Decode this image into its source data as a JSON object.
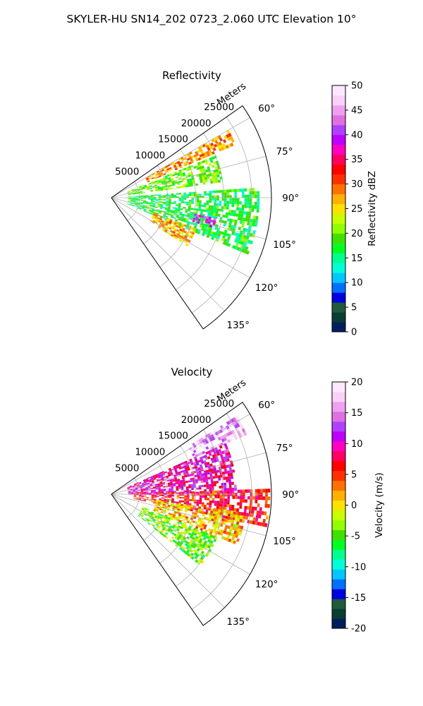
{
  "figure": {
    "suptitle": "SKYLER-HU  SN14_202  0723_2.060 UTC Elevation 10°"
  },
  "chart_data": [
    {
      "type": "heatmap",
      "projection": "polar-sector",
      "title": "Reflectivity",
      "range_label": "Meters",
      "range_ticks": [
        "5000",
        "10000",
        "15000",
        "20000",
        "25000"
      ],
      "range_values": [
        5000,
        10000,
        15000,
        20000,
        25000
      ],
      "range_max": 28500,
      "azimuth_ticks": [
        "60°",
        "75°",
        "90°",
        "105°",
        "120°",
        "135°"
      ],
      "azimuth_values": [
        60,
        75,
        90,
        105,
        120,
        135
      ],
      "azimuth_range": [
        55,
        145
      ],
      "grid": true,
      "colorbar": {
        "label": "Reflectivity dBZ",
        "min": 0,
        "max": 50,
        "tick_labels": [
          "0",
          "5",
          "10",
          "15",
          "20",
          "25",
          "30",
          "35",
          "40",
          "45",
          "50"
        ],
        "tick_values": [
          0,
          5,
          10,
          15,
          20,
          25,
          30,
          35,
          40,
          45,
          50
        ],
        "colors": [
          "#001f5c",
          "#0a3d33",
          "#1f5a3a",
          "#0000e0",
          "#0070ff",
          "#00c8ff",
          "#00ffd8",
          "#00ff90",
          "#00ff20",
          "#40e000",
          "#90ff00",
          "#c8ff00",
          "#ffe000",
          "#ffb000",
          "#ff7000",
          "#ff3000",
          "#ff0000",
          "#ff0060",
          "#ff00c0",
          "#c000ff",
          "#b040ff",
          "#e070e0",
          "#f0a0f0",
          "#f8d0f8",
          "#ffe8ff"
        ]
      },
      "features": [
        {
          "azimuth_range": [
            68,
            82
          ],
          "range": [
            3000,
            20000
          ],
          "value": 20
        },
        {
          "azimuth_range": [
            60,
            66
          ],
          "range": [
            7000,
            24000
          ],
          "value": 28
        },
        {
          "azimuth_range": [
            86,
            112
          ],
          "range": [
            3000,
            26000
          ],
          "value": 17
        },
        {
          "azimuth_range": [
            101,
            106
          ],
          "range": [
            15000,
            19000
          ],
          "value": 40
        },
        {
          "azimuth_range": [
            110,
            122
          ],
          "range": [
            8000,
            16000
          ],
          "value": 27
        }
      ]
    },
    {
      "type": "heatmap",
      "projection": "polar-sector",
      "title": "Velocity",
      "range_label": "Meters",
      "range_ticks": [
        "5000",
        "10000",
        "15000",
        "20000",
        "25000"
      ],
      "range_values": [
        5000,
        10000,
        15000,
        20000,
        25000
      ],
      "range_max": 28500,
      "azimuth_ticks": [
        "60°",
        "75°",
        "90°",
        "105°",
        "120°",
        "135°"
      ],
      "azimuth_values": [
        60,
        75,
        90,
        105,
        120,
        135
      ],
      "azimuth_range": [
        55,
        145
      ],
      "grid": true,
      "colorbar": {
        "label": "Velocity (m/s)",
        "min": -20,
        "max": 20,
        "tick_labels": [
          "-20",
          "-15",
          "-10",
          "-5",
          "0",
          "5",
          "10",
          "15",
          "20"
        ],
        "tick_values": [
          -20,
          -15,
          -10,
          -5,
          0,
          5,
          10,
          15,
          20
        ],
        "colors": [
          "#001f5c",
          "#0a3d33",
          "#1f5a3a",
          "#0000e0",
          "#0070ff",
          "#00c8ff",
          "#00ffd8",
          "#00ff90",
          "#00ff20",
          "#40e000",
          "#90ff00",
          "#c8ff00",
          "#ffe000",
          "#ffb000",
          "#ff7000",
          "#ff3000",
          "#ff0000",
          "#ff0060",
          "#ff00c0",
          "#c000ff",
          "#b040ff",
          "#e070e0",
          "#f0a0f0",
          "#f8d0f8",
          "#ffe8ff"
        ]
      },
      "features": [
        {
          "azimuth_range": [
            58,
            66
          ],
          "range": [
            16000,
            26000
          ],
          "value": 16
        },
        {
          "azimuth_range": [
            66,
            90
          ],
          "range": [
            3000,
            22000
          ],
          "value": 10
        },
        {
          "azimuth_range": [
            88,
            102
          ],
          "range": [
            4000,
            28000
          ],
          "value": 6
        },
        {
          "azimuth_range": [
            98,
            112
          ],
          "range": [
            8000,
            24000
          ],
          "value": 1
        },
        {
          "azimuth_range": [
            112,
            128
          ],
          "range": [
            6000,
            20000
          ],
          "value": -4
        }
      ]
    }
  ]
}
